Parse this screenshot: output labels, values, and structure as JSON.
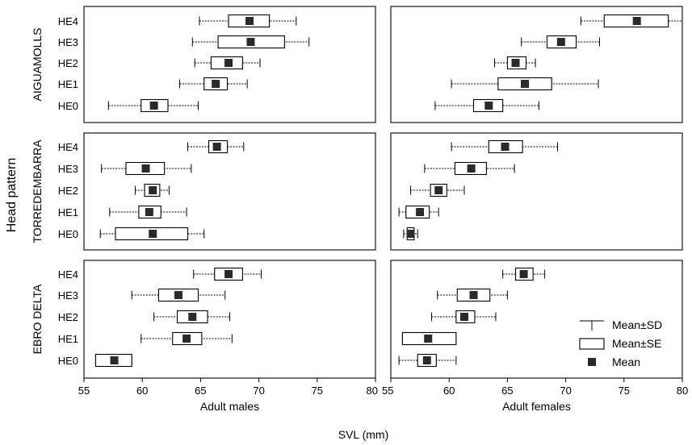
{
  "chart_data": {
    "type": "boxplot",
    "ylabel": "Head pattern",
    "xlabel": "SVL (mm)",
    "x_ticks": [
      55,
      60,
      65,
      70,
      75,
      80
    ],
    "xlim": [
      55,
      80
    ],
    "columns": [
      "Adult males",
      "Adult females"
    ],
    "sites": [
      "AIGUAMOLLS",
      "TORREDEMBARRA",
      "EBRO DELTA"
    ],
    "categories": [
      "HE4",
      "HE3",
      "HE2",
      "HE1",
      "HE0"
    ],
    "legend": {
      "items": [
        {
          "key": "sd",
          "label": "Mean±SD"
        },
        {
          "key": "se",
          "label": "Mean±SE"
        },
        {
          "key": "mean",
          "label": "Mean"
        }
      ]
    },
    "panels": [
      {
        "site": "AIGUAMOLLS",
        "sex": "Adult males",
        "data": [
          {
            "cat": "HE4",
            "mean": 69.2,
            "se": [
              67.4,
              70.9
            ],
            "sd": [
              64.9,
              73.2
            ]
          },
          {
            "cat": "HE3",
            "mean": 69.3,
            "se": [
              66.5,
              72.2
            ],
            "sd": [
              64.3,
              74.3
            ]
          },
          {
            "cat": "HE2",
            "mean": 67.4,
            "se": [
              65.9,
              68.6
            ],
            "sd": [
              64.5,
              70.1
            ]
          },
          {
            "cat": "HE1",
            "mean": 66.3,
            "se": [
              65.3,
              67.3
            ],
            "sd": [
              63.2,
              69.0
            ]
          },
          {
            "cat": "HE0",
            "mean": 61.0,
            "se": [
              59.9,
              62.2
            ],
            "sd": [
              57.1,
              64.8
            ]
          }
        ]
      },
      {
        "site": "AIGUAMOLLS",
        "sex": "Adult females",
        "data": [
          {
            "cat": "HE4",
            "mean": 76.1,
            "se": [
              73.3,
              78.8
            ],
            "sd": [
              71.3,
              80.5
            ]
          },
          {
            "cat": "HE3",
            "mean": 69.6,
            "se": [
              68.4,
              70.9
            ],
            "sd": [
              66.2,
              72.9
            ]
          },
          {
            "cat": "HE2",
            "mean": 65.7,
            "se": [
              65.0,
              66.6
            ],
            "sd": [
              63.9,
              67.4
            ]
          },
          {
            "cat": "HE1",
            "mean": 66.5,
            "se": [
              64.2,
              68.8
            ],
            "sd": [
              60.2,
              72.8
            ]
          },
          {
            "cat": "HE0",
            "mean": 63.4,
            "se": [
              62.1,
              64.6
            ],
            "sd": [
              58.8,
              67.7
            ]
          }
        ]
      },
      {
        "site": "TORREDEMBARRA",
        "sex": "Adult males",
        "data": [
          {
            "cat": "HE4",
            "mean": 66.4,
            "se": [
              65.7,
              67.3
            ],
            "sd": [
              63.9,
              68.7
            ]
          },
          {
            "cat": "HE3",
            "mean": 60.3,
            "se": [
              58.6,
              61.9
            ],
            "sd": [
              56.5,
              64.2
            ]
          },
          {
            "cat": "HE2",
            "mean": 60.9,
            "se": [
              60.2,
              61.5
            ],
            "sd": [
              59.4,
              62.3
            ]
          },
          {
            "cat": "HE1",
            "mean": 60.6,
            "se": [
              59.7,
              61.6
            ],
            "sd": [
              57.2,
              63.8
            ]
          },
          {
            "cat": "HE0",
            "mean": 60.9,
            "se": [
              57.7,
              63.9
            ],
            "sd": [
              56.4,
              65.3
            ]
          }
        ]
      },
      {
        "site": "TORREDEMBARRA",
        "sex": "Adult females",
        "data": [
          {
            "cat": "HE4",
            "mean": 64.8,
            "se": [
              63.4,
              66.3
            ],
            "sd": [
              60.2,
              69.3
            ]
          },
          {
            "cat": "HE3",
            "mean": 61.9,
            "se": [
              60.5,
              63.2
            ],
            "sd": [
              57.9,
              65.6
            ]
          },
          {
            "cat": "HE2",
            "mean": 59.1,
            "se": [
              58.4,
              59.8
            ],
            "sd": [
              56.7,
              61.3
            ]
          },
          {
            "cat": "HE1",
            "mean": 57.5,
            "se": [
              56.3,
              58.3
            ],
            "sd": [
              55.7,
              59.1
            ]
          },
          {
            "cat": "HE0",
            "mean": 56.7,
            "se": [
              56.4,
              57.0
            ],
            "sd": [
              56.1,
              57.3
            ]
          }
        ]
      },
      {
        "site": "EBRO DELTA",
        "sex": "Adult males",
        "data": [
          {
            "cat": "HE4",
            "mean": 67.4,
            "se": [
              66.2,
              68.6
            ],
            "sd": [
              64.4,
              70.2
            ]
          },
          {
            "cat": "HE3",
            "mean": 63.1,
            "se": [
              61.4,
              64.8
            ],
            "sd": [
              59.1,
              67.1
            ]
          },
          {
            "cat": "HE2",
            "mean": 64.3,
            "se": [
              63.0,
              65.6
            ],
            "sd": [
              61.0,
              67.5
            ]
          },
          {
            "cat": "HE1",
            "mean": 63.8,
            "se": [
              62.6,
              65.1
            ],
            "sd": [
              59.9,
              67.7
            ]
          },
          {
            "cat": "HE0",
            "mean": 57.6,
            "se": [
              56.0,
              59.1
            ],
            "sd": [
              56.0,
              59.1
            ]
          }
        ]
      },
      {
        "site": "EBRO DELTA",
        "sex": "Adult females",
        "data": [
          {
            "cat": "HE4",
            "mean": 66.4,
            "se": [
              65.7,
              67.2
            ],
            "sd": [
              64.6,
              68.2
            ]
          },
          {
            "cat": "HE3",
            "mean": 62.1,
            "se": [
              60.7,
              63.5
            ],
            "sd": [
              59.0,
              65.0
            ]
          },
          {
            "cat": "HE2",
            "mean": 61.3,
            "se": [
              60.6,
              62.2
            ],
            "sd": [
              58.5,
              64.0
            ]
          },
          {
            "cat": "HE1",
            "mean": 58.2,
            "se": [
              56.0,
              60.6
            ],
            "sd": [
              56.0,
              60.6
            ]
          },
          {
            "cat": "HE0",
            "mean": 58.1,
            "se": [
              57.3,
              58.9
            ],
            "sd": [
              55.7,
              60.6
            ]
          }
        ]
      }
    ]
  }
}
